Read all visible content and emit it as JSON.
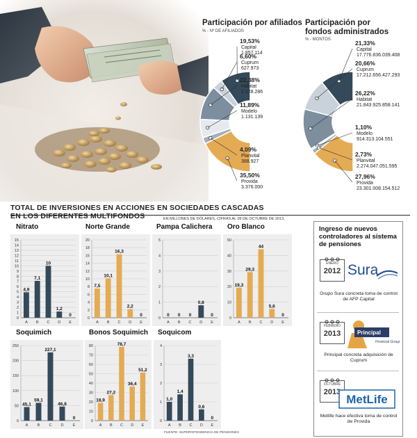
{
  "donut_afiliados": {
    "title_line1": "Participación por afiliados",
    "subtitle": "% - Nº DE AFILIADOS",
    "items": [
      {
        "pct": "19,53%",
        "name": "Capital",
        "value": "1.857.114",
        "share": 19.53,
        "color": "#34495a"
      },
      {
        "pct": "6,60%",
        "name": "Cuprum",
        "value": "627.973",
        "share": 6.6,
        "color": "#c9d2db"
      },
      {
        "pct": "22,38%",
        "name": "Habitat",
        "value": "2.128.286",
        "share": 22.38,
        "color": "#7d8e9e"
      },
      {
        "pct": "11,89%",
        "name": "Modelo",
        "value": "1.131.139",
        "share": 11.89,
        "color": "#e6eaee"
      },
      {
        "pct": "4,09%",
        "name": "Planvital",
        "value": "388.927",
        "share": 4.09,
        "color": "#a3b0bc"
      },
      {
        "pct": "35,50%",
        "name": "Provida",
        "value": "3.376.000",
        "share": 35.5,
        "color": "#e4ab55"
      }
    ]
  },
  "donut_fondos": {
    "title_line1": "Participación por",
    "title_line2": "fondos administrados",
    "subtitle": "% - MONTOS",
    "items": [
      {
        "pct": "21,33%",
        "name": "Capital",
        "value": "17.776.836.039.408",
        "share": 21.33,
        "color": "#34495a"
      },
      {
        "pct": "20,66%",
        "name": "Cuprum",
        "value": "17.212.656.427.293",
        "share": 20.66,
        "color": "#c9d2db"
      },
      {
        "pct": "26,22%",
        "name": "Habitat",
        "value": "21.843.925.858.141",
        "share": 26.22,
        "color": "#7d8e9e"
      },
      {
        "pct": "1,10%",
        "name": "Modelo",
        "value": "914.313.104.551",
        "share": 1.1,
        "color": "#e6eaee"
      },
      {
        "pct": "2,73%",
        "name": "Planvital",
        "value": "2.274.047.051.595",
        "share": 2.73,
        "color": "#a3b0bc"
      },
      {
        "pct": "27,96%",
        "name": "Provida",
        "value": "23.301.008.154.512",
        "share": 27.96,
        "color": "#e4ab55"
      }
    ]
  },
  "section": {
    "title_line1": "TOTAL DE INVERSIONES EN ACCIONES EN SOCIEDADES CASCADAS",
    "title_line2": "EN LOS DIFERENTES MULTIFONDOS",
    "note": "EN MILLONES DE DÓLARES, CIFRAS AL 09 DE OCTUBRE DE 2013,",
    "source": "FUENTE: SUPERINTENDENCIA DE PENSIONES"
  },
  "chart_data": [
    {
      "type": "bar",
      "title": "Nitrato",
      "categories": [
        "A",
        "B",
        "C",
        "D",
        "E"
      ],
      "values": [
        4.9,
        7.1,
        10,
        1.2,
        0
      ],
      "labels": [
        "4,9",
        "7,1",
        "10",
        "1,2",
        "0"
      ],
      "ylim": [
        0,
        15
      ],
      "yticks": [
        0,
        1,
        2,
        3,
        4,
        5,
        6,
        7,
        8,
        9,
        10,
        11,
        12,
        13,
        14,
        15
      ],
      "color": "#34495a"
    },
    {
      "type": "bar",
      "title": "Norte Grande",
      "categories": [
        "A",
        "B",
        "C",
        "D",
        "E"
      ],
      "values": [
        7.5,
        10.1,
        16.3,
        2.2,
        0
      ],
      "labels": [
        "7,5",
        "10,1",
        "16,3",
        "2,2",
        "0"
      ],
      "ylim": [
        0,
        20
      ],
      "yticks": [
        0,
        2,
        4,
        6,
        8,
        10,
        12,
        14,
        16,
        18,
        20
      ],
      "color": "#e4ab55"
    },
    {
      "type": "bar",
      "title": "Pampa Calichera",
      "categories": [
        "A",
        "B",
        "C",
        "D",
        "E"
      ],
      "values": [
        0,
        0,
        0,
        0.8,
        0
      ],
      "labels": [
        "0",
        "0",
        "0",
        "0,8",
        "0"
      ],
      "ylim": [
        0,
        5
      ],
      "yticks": [
        0,
        1,
        2,
        3,
        4,
        5
      ],
      "color": "#34495a"
    },
    {
      "type": "bar",
      "title": "Oro Blanco",
      "categories": [
        "A",
        "B",
        "C",
        "D",
        "E"
      ],
      "values": [
        19.3,
        29.3,
        44,
        5.6,
        0
      ],
      "labels": [
        "19,3",
        "29,3",
        "44",
        "5,6",
        "0"
      ],
      "ylim": [
        0,
        50
      ],
      "yticks": [
        0,
        10,
        20,
        30,
        40,
        50
      ],
      "color": "#e4ab55"
    },
    {
      "type": "bar",
      "title": "Soquimich",
      "categories": [
        "A",
        "B",
        "C",
        "D",
        "E"
      ],
      "values": [
        45.1,
        59.1,
        227.1,
        46.8,
        0
      ],
      "labels": [
        "45,1",
        "59,1",
        "227,1",
        "46,8",
        "0"
      ],
      "ylim": [
        0,
        250
      ],
      "yticks": [
        0,
        50,
        100,
        150,
        200,
        250
      ],
      "color": "#34495a"
    },
    {
      "type": "bar",
      "title": "Bonos Soquimich",
      "categories": [
        "A",
        "B",
        "C",
        "D",
        "E"
      ],
      "values": [
        18.9,
        27.2,
        78.7,
        36.4,
        51.2
      ],
      "labels": [
        "18,9",
        "27,2",
        "78,7",
        "36,4",
        "51,2"
      ],
      "ylim": [
        0,
        80
      ],
      "yticks": [
        0,
        10,
        20,
        30,
        40,
        50,
        60,
        70,
        80
      ],
      "color": "#e4ab55"
    },
    {
      "type": "bar",
      "title": "Soquicom",
      "categories": [
        "A",
        "B",
        "C",
        "D",
        "E"
      ],
      "values": [
        1.0,
        1.4,
        3.3,
        0.6,
        0
      ],
      "labels": [
        "1,0",
        "1,4",
        "3,3",
        "0,6",
        "0"
      ],
      "ylim": [
        0,
        4
      ],
      "yticks": [
        0,
        1,
        2,
        3,
        4
      ],
      "color": "#34495a"
    }
  ],
  "news": {
    "title": "Ingreso de nuevos controladores al sistema de pensiones",
    "items": [
      {
        "month": "ENERO",
        "year": "2012",
        "logo": "Sura",
        "caption": "Grupo Sura concreta toma de control de AFP Capital"
      },
      {
        "month": "FEBRERO",
        "year": "2013",
        "logo": "Principal",
        "logo_sub": "Financial Group",
        "caption": "Principal concreta adquisición de Cuprum"
      },
      {
        "month": "OCTUBRE",
        "year": "2013",
        "logo": "MetLife",
        "caption": "Metlife hace efectiva toma de control de Provida"
      }
    ]
  },
  "colors": {
    "dark": "#34495a",
    "gold": "#e4ab55",
    "panel": "#eeeeee",
    "sura": "#1f4e8c",
    "metlife": "#1d63a8"
  }
}
